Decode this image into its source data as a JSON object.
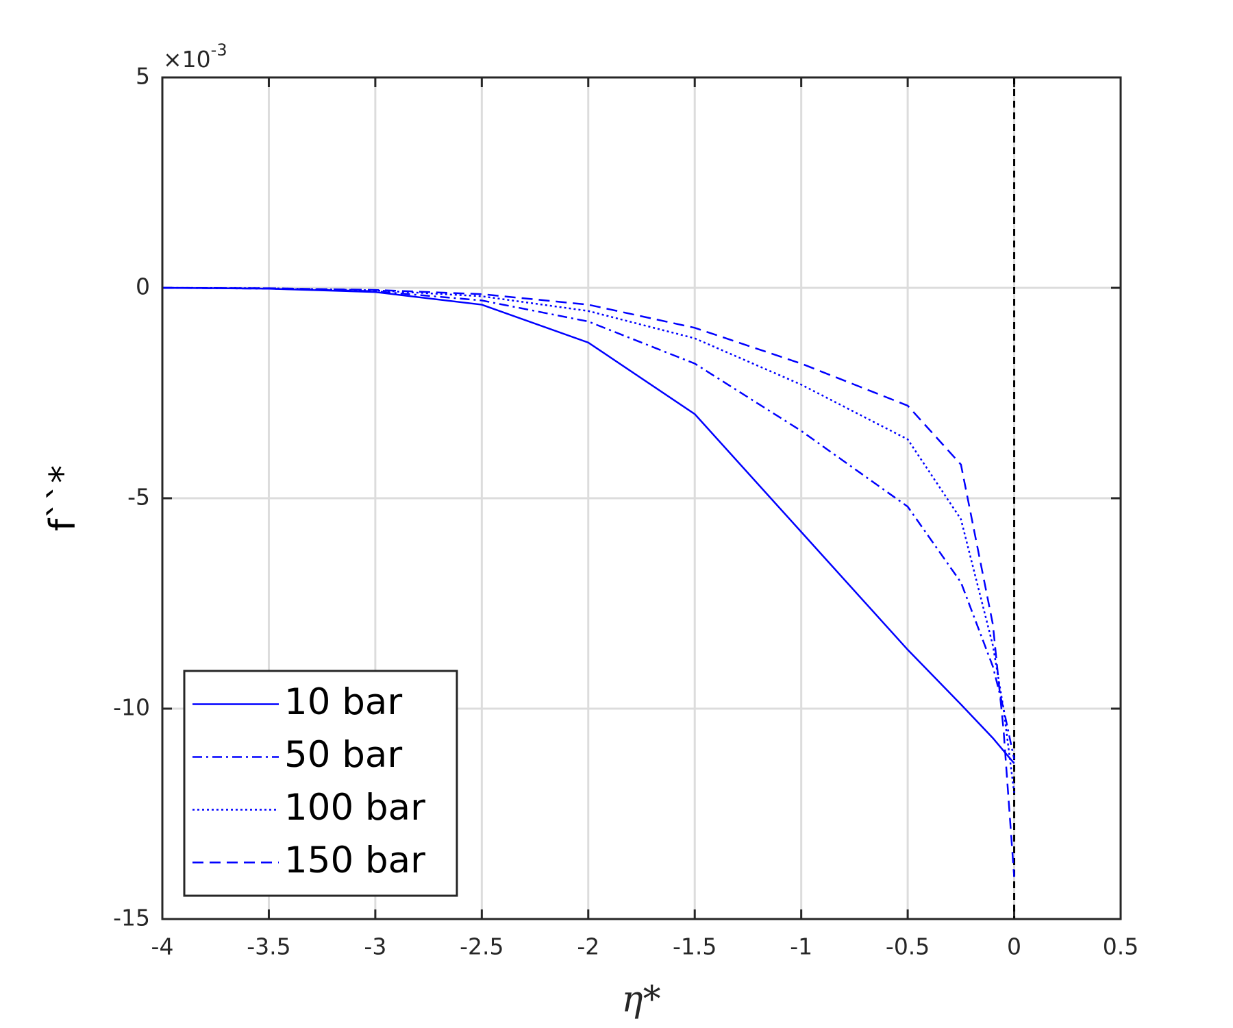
{
  "chart_data": {
    "type": "line",
    "xlabel": "η*",
    "ylabel": "f``*",
    "y_multiplier": {
      "base": "×10",
      "exponent": "-3"
    },
    "x": [
      -4,
      -3.5,
      -3,
      -2.5,
      -2,
      -1.5,
      -1,
      -0.5,
      -0.25,
      -0.1,
      -0.05,
      0
    ],
    "series": [
      {
        "name": "10 bar",
        "color": "#0000ff",
        "style": "solid",
        "values": [
          0,
          -0.02,
          -0.1,
          -0.4,
          -1.3,
          -3.0,
          -5.8,
          -8.6,
          -9.9,
          -10.7,
          -11.0,
          -11.3
        ]
      },
      {
        "name": "50 bar",
        "color": "#0000ff",
        "style": "dashdot",
        "values": [
          0,
          -0.02,
          -0.08,
          -0.3,
          -0.8,
          -1.8,
          -3.4,
          -5.2,
          -7.0,
          -9.0,
          -10.0,
          -11.2
        ]
      },
      {
        "name": "100 bar",
        "color": "#0000ff",
        "style": "dotted",
        "values": [
          0,
          -0.01,
          -0.06,
          -0.2,
          -0.55,
          -1.2,
          -2.3,
          -3.6,
          -5.5,
          -8.5,
          -10.0,
          -12.0
        ]
      },
      {
        "name": "150 bar",
        "color": "#0000ff",
        "style": "dashed",
        "values": [
          0,
          -0.01,
          -0.05,
          -0.15,
          -0.4,
          -0.95,
          -1.8,
          -2.8,
          -4.2,
          -8.0,
          -10.5,
          -14.0
        ]
      }
    ],
    "vline": 0,
    "xlim": [
      -4,
      0.5
    ],
    "xticks": [
      -4,
      -3.5,
      -3,
      -2.5,
      -2,
      -1.5,
      -1,
      -0.5,
      0,
      0.5
    ],
    "ylim": [
      -15,
      5
    ],
    "yticks": [
      -15,
      -10,
      -5,
      0,
      5
    ],
    "grid": true,
    "legend": "lower-left"
  }
}
